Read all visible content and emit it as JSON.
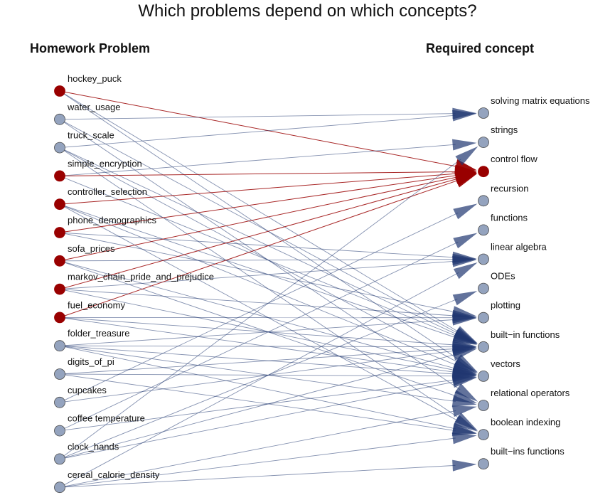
{
  "title": "Which problems depend on which concepts?",
  "headers": {
    "left": "Homework Problem",
    "right": "Required concept"
  },
  "colors": {
    "highlight": "#990000",
    "normal_node": "#94A3BE",
    "normal_edge": "#1F3670",
    "node_stroke": "#4a4a4a"
  },
  "problems": [
    {
      "label": "hockey_puck",
      "highlight": true
    },
    {
      "label": "water_usage",
      "highlight": false
    },
    {
      "label": "truck_scale",
      "highlight": false
    },
    {
      "label": "simple_encryption",
      "highlight": true
    },
    {
      "label": "controller_selection",
      "highlight": true
    },
    {
      "label": "phone_demographics",
      "highlight": true
    },
    {
      "label": "sofa_prices",
      "highlight": true
    },
    {
      "label": "markov_chain_pride_and_prejudice",
      "highlight": true
    },
    {
      "label": "fuel_economy",
      "highlight": true
    },
    {
      "label": "folder_treasure",
      "highlight": false
    },
    {
      "label": "digits_of_pi",
      "highlight": false
    },
    {
      "label": "cupcakes",
      "highlight": false
    },
    {
      "label": "coffee temperature",
      "highlight": false
    },
    {
      "label": "clock_hands",
      "highlight": false
    },
    {
      "label": "cereal_calorie_density",
      "highlight": false
    }
  ],
  "concepts": [
    {
      "label": "solving matrix equations",
      "highlight": false
    },
    {
      "label": "strings",
      "highlight": false
    },
    {
      "label": "control flow",
      "highlight": true
    },
    {
      "label": "recursion",
      "highlight": false
    },
    {
      "label": "functions",
      "highlight": false
    },
    {
      "label": "linear algebra",
      "highlight": false
    },
    {
      "label": "ODEs",
      "highlight": false
    },
    {
      "label": "plotting",
      "highlight": false
    },
    {
      "label": "built−in functions",
      "highlight": false
    },
    {
      "label": "vectors",
      "highlight": false
    },
    {
      "label": "relational operators",
      "highlight": false
    },
    {
      "label": "boolean indexing",
      "highlight": false
    },
    {
      "label": "built−ins functions",
      "highlight": false
    }
  ],
  "edges": [
    [
      0,
      2
    ],
    [
      0,
      8
    ],
    [
      0,
      9
    ],
    [
      1,
      0
    ],
    [
      1,
      8
    ],
    [
      1,
      10
    ],
    [
      2,
      0
    ],
    [
      2,
      8
    ],
    [
      2,
      9
    ],
    [
      2,
      11
    ],
    [
      3,
      1
    ],
    [
      3,
      2
    ],
    [
      3,
      8
    ],
    [
      4,
      2
    ],
    [
      4,
      8
    ],
    [
      4,
      9
    ],
    [
      4,
      11
    ],
    [
      5,
      2
    ],
    [
      5,
      5
    ],
    [
      5,
      7
    ],
    [
      6,
      2
    ],
    [
      6,
      5
    ],
    [
      6,
      9
    ],
    [
      6,
      10
    ],
    [
      7,
      2
    ],
    [
      7,
      5
    ],
    [
      7,
      7
    ],
    [
      7,
      9
    ],
    [
      8,
      2
    ],
    [
      8,
      7
    ],
    [
      8,
      8
    ],
    [
      8,
      9
    ],
    [
      9,
      7
    ],
    [
      9,
      8
    ],
    [
      9,
      9
    ],
    [
      9,
      10
    ],
    [
      9,
      11
    ],
    [
      10,
      8
    ],
    [
      10,
      9
    ],
    [
      10,
      11
    ],
    [
      11,
      3
    ],
    [
      11,
      8
    ],
    [
      12,
      4
    ],
    [
      12,
      9
    ],
    [
      13,
      1
    ],
    [
      13,
      6
    ],
    [
      13,
      8
    ],
    [
      13,
      9
    ],
    [
      14,
      5
    ],
    [
      14,
      10
    ],
    [
      14,
      11
    ],
    [
      14,
      12
    ]
  ]
}
